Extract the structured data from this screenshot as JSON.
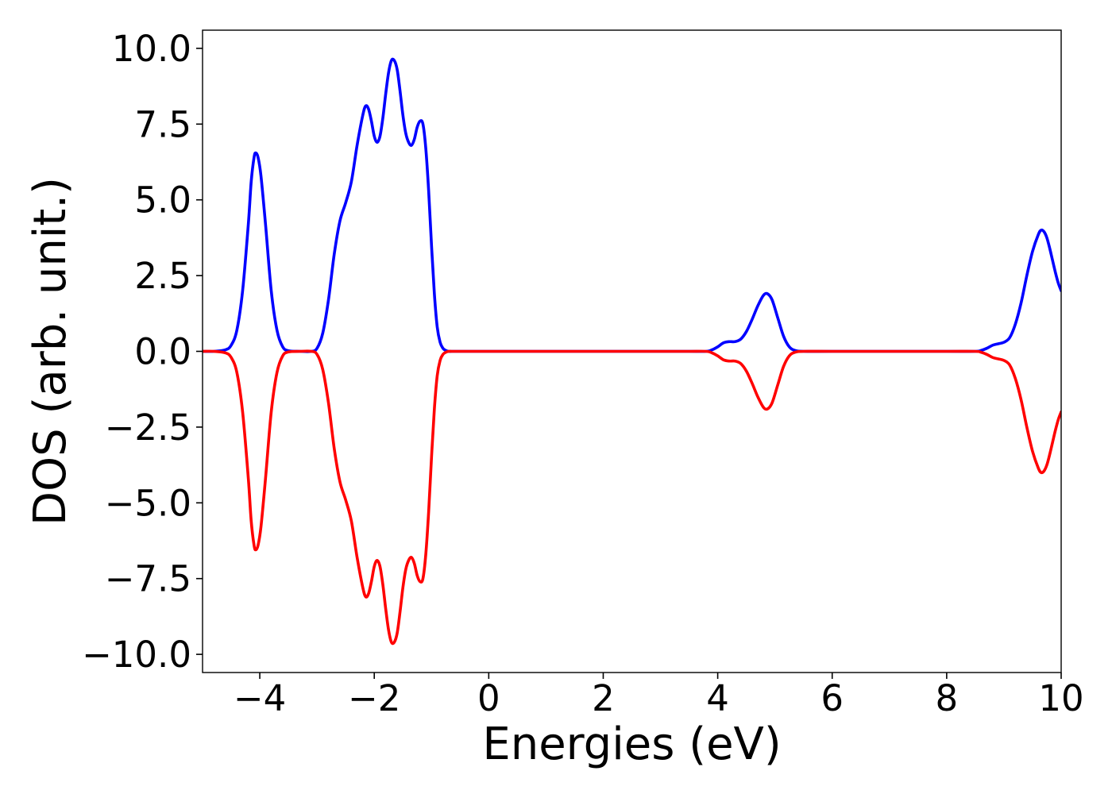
{
  "chart_data": {
    "type": "line",
    "title": "",
    "xlabel": "Energies (eV)",
    "ylabel": "DOS (arb. unit.)",
    "xlim": [
      -5,
      10
    ],
    "ylim": [
      -10.6,
      10.6
    ],
    "x_ticks": [
      -4,
      -2,
      0,
      2,
      4,
      6,
      8,
      10
    ],
    "x_tick_labels": [
      "−4",
      "−2",
      "0",
      "2",
      "4",
      "6",
      "8",
      "10"
    ],
    "y_ticks": [
      10.0,
      7.5,
      5.0,
      2.5,
      0.0,
      -2.5,
      -5.0,
      -7.5,
      -10.0
    ],
    "y_tick_labels": [
      "10.0",
      "7.5",
      "5.0",
      "2.5",
      "0.0",
      "−2.5",
      "−5.0",
      "−7.5",
      "−10.0"
    ],
    "grid": false,
    "legend": "none",
    "series": [
      {
        "color": "#0000ff",
        "x": [
          -5.0,
          -4.8,
          -4.6,
          -4.5,
          -4.4,
          -4.3,
          -4.2,
          -4.15,
          -4.1,
          -4.07,
          -4.03,
          -3.98,
          -3.9,
          -3.8,
          -3.7,
          -3.6,
          -3.5,
          -3.3,
          -3.1,
          -3.0,
          -2.9,
          -2.8,
          -2.7,
          -2.6,
          -2.5,
          -2.4,
          -2.3,
          -2.2,
          -2.15,
          -2.1,
          -2.05,
          -2.0,
          -1.95,
          -1.9,
          -1.85,
          -1.8,
          -1.75,
          -1.7,
          -1.65,
          -1.6,
          -1.55,
          -1.5,
          -1.45,
          -1.4,
          -1.35,
          -1.3,
          -1.25,
          -1.2,
          -1.15,
          -1.1,
          -1.05,
          -1.0,
          -0.95,
          -0.9,
          -0.85,
          -0.8,
          -0.75,
          -0.7,
          -0.65,
          -0.6,
          -0.55,
          -0.5,
          -0.4,
          0.0,
          1.0,
          2.0,
          3.0,
          3.5,
          3.8,
          3.9,
          4.0,
          4.1,
          4.2,
          4.3,
          4.4,
          4.5,
          4.6,
          4.7,
          4.8,
          4.87,
          4.95,
          5.05,
          5.15,
          5.25,
          5.35,
          5.5,
          6.0,
          7.0,
          8.0,
          8.5,
          8.6,
          8.7,
          8.8,
          8.9,
          9.0,
          9.1,
          9.2,
          9.3,
          9.4,
          9.5,
          9.6,
          9.65,
          9.7,
          9.75,
          9.8,
          9.85,
          9.9,
          9.95,
          10.0
        ],
        "y": [
          0.0,
          0.0,
          0.05,
          0.2,
          0.7,
          2.0,
          4.2,
          5.6,
          6.4,
          6.55,
          6.4,
          5.8,
          4.2,
          2.0,
          0.7,
          0.15,
          0.02,
          0.0,
          0.0,
          0.1,
          0.6,
          1.7,
          3.2,
          4.3,
          4.9,
          5.6,
          6.8,
          7.8,
          8.1,
          8.0,
          7.6,
          7.1,
          6.9,
          7.1,
          7.7,
          8.5,
          9.2,
          9.6,
          9.6,
          9.3,
          8.6,
          7.8,
          7.2,
          6.9,
          6.8,
          7.0,
          7.4,
          7.6,
          7.5,
          6.7,
          5.3,
          3.5,
          1.9,
          0.8,
          0.3,
          0.1,
          0.03,
          0.0,
          0.0,
          0.0,
          0.0,
          0.0,
          0.0,
          0.0,
          0.0,
          0.0,
          0.0,
          0.0,
          0.0,
          0.05,
          0.15,
          0.28,
          0.32,
          0.32,
          0.4,
          0.65,
          1.05,
          1.5,
          1.85,
          1.9,
          1.7,
          1.1,
          0.5,
          0.15,
          0.03,
          0.0,
          0.0,
          0.0,
          0.0,
          0.0,
          0.03,
          0.1,
          0.2,
          0.25,
          0.3,
          0.45,
          0.9,
          1.6,
          2.5,
          3.3,
          3.85,
          4.0,
          3.95,
          3.75,
          3.4,
          3.0,
          2.6,
          2.25,
          2.0
        ]
      },
      {
        "color": "#ff0000",
        "x": [
          -5.0,
          -4.8,
          -4.6,
          -4.5,
          -4.4,
          -4.3,
          -4.2,
          -4.15,
          -4.1,
          -4.07,
          -4.03,
          -3.98,
          -3.9,
          -3.8,
          -3.7,
          -3.6,
          -3.5,
          -3.3,
          -3.1,
          -3.0,
          -2.9,
          -2.8,
          -2.7,
          -2.6,
          -2.5,
          -2.4,
          -2.3,
          -2.2,
          -2.15,
          -2.1,
          -2.05,
          -2.0,
          -1.95,
          -1.9,
          -1.85,
          -1.8,
          -1.75,
          -1.7,
          -1.65,
          -1.6,
          -1.55,
          -1.5,
          -1.45,
          -1.4,
          -1.35,
          -1.3,
          -1.25,
          -1.2,
          -1.15,
          -1.1,
          -1.05,
          -1.0,
          -0.95,
          -0.9,
          -0.85,
          -0.8,
          -0.75,
          -0.7,
          -0.65,
          -0.6,
          -0.55,
          -0.5,
          -0.4,
          0.0,
          1.0,
          2.0,
          3.0,
          3.5,
          3.8,
          3.9,
          4.0,
          4.1,
          4.2,
          4.3,
          4.4,
          4.5,
          4.6,
          4.7,
          4.8,
          4.87,
          4.95,
          5.05,
          5.15,
          5.25,
          5.35,
          5.5,
          6.0,
          7.0,
          8.0,
          8.5,
          8.6,
          8.7,
          8.8,
          8.9,
          9.0,
          9.1,
          9.2,
          9.3,
          9.4,
          9.5,
          9.6,
          9.65,
          9.7,
          9.75,
          9.8,
          9.85,
          9.9,
          9.95,
          10.0
        ],
        "y": [
          0.0,
          0.0,
          -0.05,
          -0.2,
          -0.7,
          -2.0,
          -4.2,
          -5.6,
          -6.4,
          -6.55,
          -6.4,
          -5.8,
          -4.2,
          -2.0,
          -0.7,
          -0.15,
          -0.02,
          0.0,
          0.0,
          -0.1,
          -0.6,
          -1.7,
          -3.2,
          -4.3,
          -4.9,
          -5.6,
          -6.8,
          -7.8,
          -8.1,
          -8.0,
          -7.6,
          -7.1,
          -6.9,
          -7.1,
          -7.7,
          -8.5,
          -9.2,
          -9.6,
          -9.6,
          -9.3,
          -8.6,
          -7.8,
          -7.2,
          -6.9,
          -6.8,
          -7.0,
          -7.4,
          -7.6,
          -7.5,
          -6.7,
          -5.3,
          -3.5,
          -1.9,
          -0.8,
          -0.3,
          -0.1,
          -0.03,
          0.0,
          0.0,
          0.0,
          0.0,
          0.0,
          0.0,
          0.0,
          0.0,
          0.0,
          0.0,
          0.0,
          0.0,
          -0.05,
          -0.15,
          -0.28,
          -0.32,
          -0.32,
          -0.4,
          -0.65,
          -1.05,
          -1.5,
          -1.85,
          -1.9,
          -1.7,
          -1.1,
          -0.5,
          -0.15,
          -0.03,
          0.0,
          0.0,
          0.0,
          0.0,
          0.0,
          -0.03,
          -0.1,
          -0.2,
          -0.25,
          -0.3,
          -0.45,
          -0.9,
          -1.6,
          -2.5,
          -3.3,
          -3.85,
          -4.0,
          -3.95,
          -3.75,
          -3.4,
          -3.0,
          -2.6,
          -2.25,
          -2.0
        ]
      }
    ]
  }
}
